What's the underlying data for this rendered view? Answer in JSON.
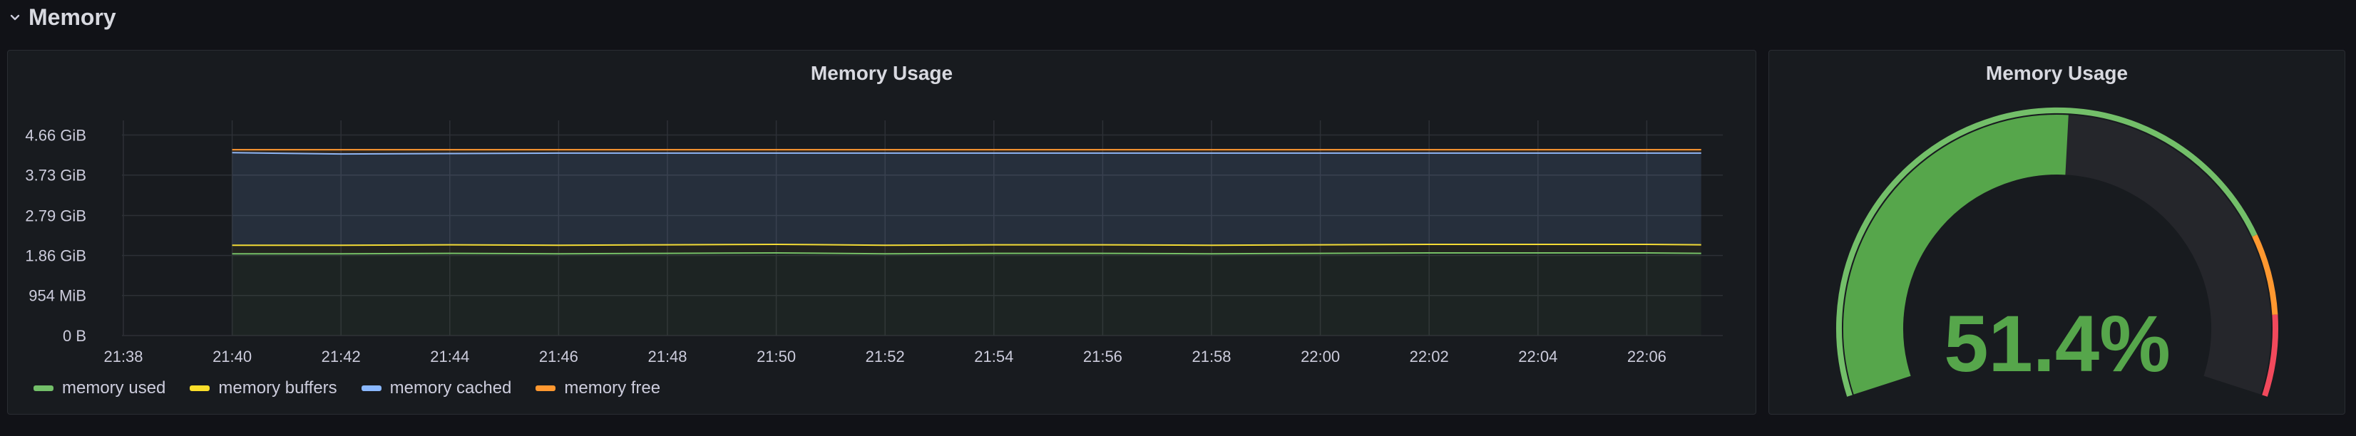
{
  "row": {
    "title": "Memory",
    "collapse_icon": "chevron-down-icon"
  },
  "timeseries_panel": {
    "title": "Memory Usage",
    "y_ticks": [
      "4.66 GiB",
      "3.73 GiB",
      "2.79 GiB",
      "1.86 GiB",
      "954 MiB",
      "0 B"
    ],
    "x_ticks": [
      "21:38",
      "21:40",
      "21:42",
      "21:44",
      "21:46",
      "21:48",
      "21:50",
      "21:52",
      "21:54",
      "21:56",
      "21:58",
      "22:00",
      "22:02",
      "22:04",
      "22:06"
    ],
    "legend": [
      {
        "label": "memory used",
        "color": "#73bf69"
      },
      {
        "label": "memory buffers",
        "color": "#fade2a"
      },
      {
        "label": "memory cached",
        "color": "#8ab8ff"
      },
      {
        "label": "memory free",
        "color": "#ff9830"
      }
    ]
  },
  "gauge_panel": {
    "title": "Memory Usage",
    "value_text": "51.4%",
    "value": 0.514,
    "colors": {
      "base": "#73bf69",
      "warn": "#ff9830",
      "crit": "#f2495c",
      "value_fill": "#56a64b",
      "track": "#25262b"
    }
  },
  "chart_data": {
    "type": "area",
    "title": "Memory Usage",
    "x": [
      "21:40",
      "21:42",
      "21:44",
      "21:46",
      "21:48",
      "21:50",
      "21:52",
      "21:54",
      "21:56",
      "21:58",
      "22:00",
      "22:02",
      "22:04",
      "22:06",
      "22:07"
    ],
    "y_unit": "GiB",
    "ylim": [
      0,
      5
    ],
    "stacked": true,
    "series": [
      {
        "name": "memory used",
        "values": [
          1.9,
          1.9,
          1.91,
          1.9,
          1.91,
          1.92,
          1.9,
          1.91,
          1.91,
          1.9,
          1.91,
          1.92,
          1.92,
          1.92,
          1.91
        ]
      },
      {
        "name": "memory buffers",
        "values": [
          0.2,
          0.2,
          0.2,
          0.2,
          0.2,
          0.2,
          0.2,
          0.2,
          0.2,
          0.2,
          0.2,
          0.2,
          0.2,
          0.2,
          0.2
        ]
      },
      {
        "name": "memory cached",
        "values": [
          2.15,
          2.12,
          2.12,
          2.14,
          2.13,
          2.12,
          2.14,
          2.13,
          2.13,
          2.14,
          2.13,
          2.12,
          2.12,
          2.12,
          2.13
        ]
      },
      {
        "name": "memory free",
        "values": [
          0.07,
          0.1,
          0.09,
          0.08,
          0.08,
          0.08,
          0.08,
          0.08,
          0.08,
          0.08,
          0.08,
          0.08,
          0.08,
          0.08,
          0.08
        ]
      }
    ],
    "grid": true,
    "legend_position": "bottom-left"
  }
}
